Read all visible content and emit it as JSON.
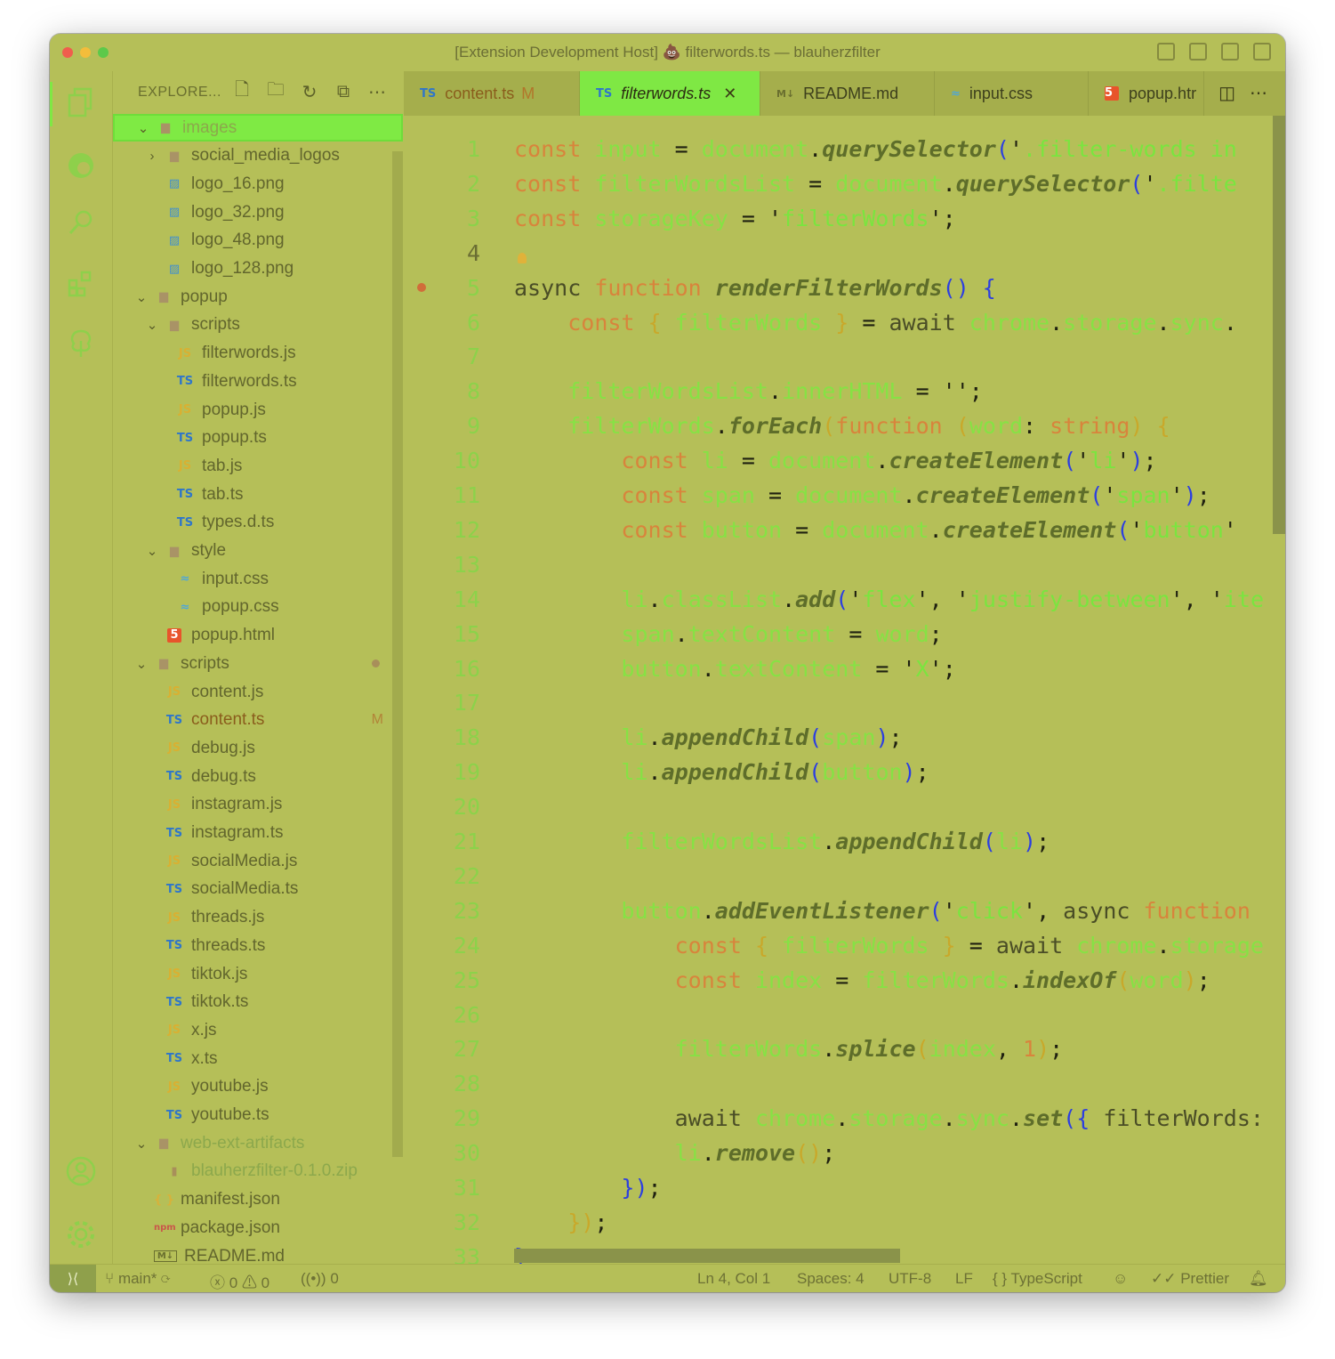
{
  "window": {
    "title": "[Extension Development Host] 💩 filterwords.ts — blauherzfilter"
  },
  "activity_bar": {
    "items": [
      "explorer-icon",
      "edge-icon",
      "search-icon",
      "extensions-icon",
      "tree-icon",
      "account-icon",
      "settings-gear-icon"
    ]
  },
  "explorer": {
    "title": "EXPLORE...",
    "actions": [
      "new-file-icon",
      "new-folder-icon",
      "refresh-icon",
      "collapse-all-icon",
      "more-icon"
    ],
    "items": [
      {
        "label": "images",
        "type": "folder",
        "expanded": true,
        "selected": true
      },
      {
        "label": "social_media_logos",
        "type": "folder",
        "expanded": false
      },
      {
        "label": "logo_16.png",
        "type": "image"
      },
      {
        "label": "logo_32.png",
        "type": "image"
      },
      {
        "label": "logo_48.png",
        "type": "image"
      },
      {
        "label": "logo_128.png",
        "type": "image"
      },
      {
        "label": "popup",
        "type": "folder",
        "expanded": true
      },
      {
        "label": "scripts",
        "type": "folder",
        "expanded": true
      },
      {
        "label": "filterwords.js",
        "type": "js"
      },
      {
        "label": "filterwords.ts",
        "type": "ts"
      },
      {
        "label": "popup.js",
        "type": "js"
      },
      {
        "label": "popup.ts",
        "type": "ts"
      },
      {
        "label": "tab.js",
        "type": "js"
      },
      {
        "label": "tab.ts",
        "type": "ts"
      },
      {
        "label": "types.d.ts",
        "type": "ts"
      },
      {
        "label": "style",
        "type": "folder",
        "expanded": true
      },
      {
        "label": "input.css",
        "type": "css"
      },
      {
        "label": "popup.css",
        "type": "css"
      },
      {
        "label": "popup.html",
        "type": "html"
      },
      {
        "label": "scripts",
        "type": "folder",
        "expanded": true,
        "dot": true
      },
      {
        "label": "content.js",
        "type": "js"
      },
      {
        "label": "content.ts",
        "type": "ts",
        "badge": "M"
      },
      {
        "label": "debug.js",
        "type": "js"
      },
      {
        "label": "debug.ts",
        "type": "ts"
      },
      {
        "label": "instagram.js",
        "type": "js"
      },
      {
        "label": "instagram.ts",
        "type": "ts"
      },
      {
        "label": "socialMedia.js",
        "type": "js"
      },
      {
        "label": "socialMedia.ts",
        "type": "ts"
      },
      {
        "label": "threads.js",
        "type": "js"
      },
      {
        "label": "threads.ts",
        "type": "ts"
      },
      {
        "label": "tiktok.js",
        "type": "js"
      },
      {
        "label": "tiktok.ts",
        "type": "ts"
      },
      {
        "label": "x.js",
        "type": "js"
      },
      {
        "label": "x.ts",
        "type": "ts"
      },
      {
        "label": "youtube.js",
        "type": "js"
      },
      {
        "label": "youtube.ts",
        "type": "ts"
      },
      {
        "label": "web-ext-artifacts",
        "type": "folder",
        "expanded": true
      },
      {
        "label": "blauherzfilter-0.1.0.zip",
        "type": "zip"
      },
      {
        "label": "manifest.json",
        "type": "json"
      },
      {
        "label": "package.json",
        "type": "npm"
      },
      {
        "label": "README.md",
        "type": "md"
      }
    ]
  },
  "tabs": [
    {
      "label": "content.ts",
      "icon": "TS",
      "modified": "M"
    },
    {
      "label": "filterwords.ts",
      "icon": "TS",
      "active": true
    },
    {
      "label": "README.md",
      "icon": "M↓"
    },
    {
      "label": "input.css",
      "icon": "≈"
    },
    {
      "label": "popup.htr",
      "icon": "5"
    }
  ],
  "editor": {
    "current_line": 4,
    "breakpoint_line": 5,
    "line_numbers": [
      "1",
      "2",
      "3",
      "4",
      "5",
      "6",
      "7",
      "8",
      "9",
      "10",
      "11",
      "12",
      "13",
      "14",
      "15",
      "16",
      "17",
      "18",
      "19",
      "20",
      "21",
      "22",
      "23",
      "24",
      "25",
      "26",
      "27",
      "28",
      "29",
      "30",
      "31",
      "32",
      "33"
    ],
    "lines": [
      [
        [
          "k",
          "const "
        ],
        [
          "v",
          "input"
        ],
        [
          "o",
          " = "
        ],
        [
          "v",
          "document"
        ],
        [
          "o",
          "."
        ],
        [
          "f",
          "querySelector"
        ],
        [
          "p",
          "("
        ],
        [
          "o",
          "'"
        ],
        [
          "s",
          ".filter-words in"
        ]
      ],
      [
        [
          "k",
          "const "
        ],
        [
          "v",
          "filterWordsList"
        ],
        [
          "o",
          " = "
        ],
        [
          "v",
          "document"
        ],
        [
          "o",
          "."
        ],
        [
          "f",
          "querySelector"
        ],
        [
          "p",
          "("
        ],
        [
          "o",
          "'"
        ],
        [
          "s",
          ".filte"
        ]
      ],
      [
        [
          "k",
          "const "
        ],
        [
          "v",
          "storageKey"
        ],
        [
          "o",
          " = "
        ],
        [
          "o",
          "'"
        ],
        [
          "s",
          "filterWords"
        ],
        [
          "o",
          "';"
        ]
      ],
      [],
      [
        [
          "kw2",
          "async "
        ],
        [
          "k",
          "function "
        ],
        [
          "f",
          "renderFilterWords"
        ],
        [
          "p",
          "() {"
        ]
      ],
      [
        [
          "o",
          "    "
        ],
        [
          "k",
          "const "
        ],
        [
          "y",
          "{ "
        ],
        [
          "v",
          "filterWords"
        ],
        [
          "y",
          " }"
        ],
        [
          "o",
          " = "
        ],
        [
          "kw2",
          "await "
        ],
        [
          "v",
          "chrome"
        ],
        [
          "o",
          "."
        ],
        [
          "v",
          "storage"
        ],
        [
          "o",
          "."
        ],
        [
          "v",
          "sync"
        ],
        [
          "o",
          "."
        ]
      ],
      [],
      [
        [
          "o",
          "    "
        ],
        [
          "v",
          "filterWordsList"
        ],
        [
          "o",
          "."
        ],
        [
          "v",
          "innerHTML"
        ],
        [
          "o",
          " = '';"
        ]
      ],
      [
        [
          "o",
          "    "
        ],
        [
          "v",
          "filterWords"
        ],
        [
          "o",
          "."
        ],
        [
          "f",
          "forEach"
        ],
        [
          "y",
          "("
        ],
        [
          "k",
          "function "
        ],
        [
          "y",
          "("
        ],
        [
          "v",
          "word"
        ],
        [
          "o",
          ": "
        ],
        [
          "n",
          "string"
        ],
        [
          "y",
          ")"
        ],
        [
          "o",
          " "
        ],
        [
          "y",
          "{"
        ]
      ],
      [
        [
          "o",
          "        "
        ],
        [
          "k",
          "const "
        ],
        [
          "v",
          "li"
        ],
        [
          "o",
          " = "
        ],
        [
          "v",
          "document"
        ],
        [
          "o",
          "."
        ],
        [
          "f",
          "createElement"
        ],
        [
          "p",
          "("
        ],
        [
          "o",
          "'"
        ],
        [
          "s",
          "li"
        ],
        [
          "o",
          "'"
        ],
        [
          "p",
          ")"
        ],
        [
          "o",
          ";"
        ]
      ],
      [
        [
          "o",
          "        "
        ],
        [
          "k",
          "const "
        ],
        [
          "v",
          "span"
        ],
        [
          "o",
          " = "
        ],
        [
          "v",
          "document"
        ],
        [
          "o",
          "."
        ],
        [
          "f",
          "createElement"
        ],
        [
          "p",
          "("
        ],
        [
          "o",
          "'"
        ],
        [
          "s",
          "span"
        ],
        [
          "o",
          "'"
        ],
        [
          "p",
          ")"
        ],
        [
          "o",
          ";"
        ]
      ],
      [
        [
          "o",
          "        "
        ],
        [
          "k",
          "const "
        ],
        [
          "v",
          "button"
        ],
        [
          "o",
          " = "
        ],
        [
          "v",
          "document"
        ],
        [
          "o",
          "."
        ],
        [
          "f",
          "createElement"
        ],
        [
          "p",
          "("
        ],
        [
          "o",
          "'"
        ],
        [
          "s",
          "button"
        ],
        [
          "o",
          "'"
        ]
      ],
      [],
      [
        [
          "o",
          "        "
        ],
        [
          "v",
          "li"
        ],
        [
          "o",
          "."
        ],
        [
          "v",
          "classList"
        ],
        [
          "o",
          "."
        ],
        [
          "f",
          "add"
        ],
        [
          "p",
          "("
        ],
        [
          "o",
          "'"
        ],
        [
          "s",
          "flex"
        ],
        [
          "o",
          "', '"
        ],
        [
          "s",
          "justify-between"
        ],
        [
          "o",
          "', '"
        ],
        [
          "s",
          "ite"
        ]
      ],
      [
        [
          "o",
          "        "
        ],
        [
          "v",
          "span"
        ],
        [
          "o",
          "."
        ],
        [
          "v",
          "textContent"
        ],
        [
          "o",
          " = "
        ],
        [
          "v",
          "word"
        ],
        [
          "o",
          ";"
        ]
      ],
      [
        [
          "o",
          "        "
        ],
        [
          "v",
          "button"
        ],
        [
          "o",
          "."
        ],
        [
          "v",
          "textContent"
        ],
        [
          "o",
          " = '"
        ],
        [
          "s",
          "X"
        ],
        [
          "o",
          "';"
        ]
      ],
      [],
      [
        [
          "o",
          "        "
        ],
        [
          "v",
          "li"
        ],
        [
          "o",
          "."
        ],
        [
          "f",
          "appendChild"
        ],
        [
          "p",
          "("
        ],
        [
          "v",
          "span"
        ],
        [
          "p",
          ")"
        ],
        [
          "o",
          ";"
        ]
      ],
      [
        [
          "o",
          "        "
        ],
        [
          "v",
          "li"
        ],
        [
          "o",
          "."
        ],
        [
          "f",
          "appendChild"
        ],
        [
          "p",
          "("
        ],
        [
          "v",
          "button"
        ],
        [
          "p",
          ")"
        ],
        [
          "o",
          ";"
        ]
      ],
      [],
      [
        [
          "o",
          "        "
        ],
        [
          "v",
          "filterWordsList"
        ],
        [
          "o",
          "."
        ],
        [
          "f",
          "appendChild"
        ],
        [
          "p",
          "("
        ],
        [
          "v",
          "li"
        ],
        [
          "p",
          ")"
        ],
        [
          "o",
          ";"
        ]
      ],
      [],
      [
        [
          "o",
          "        "
        ],
        [
          "v",
          "button"
        ],
        [
          "o",
          "."
        ],
        [
          "f",
          "addEventListener"
        ],
        [
          "p",
          "("
        ],
        [
          "o",
          "'"
        ],
        [
          "s",
          "click"
        ],
        [
          "o",
          "', "
        ],
        [
          "kw2",
          "async "
        ],
        [
          "k",
          "function"
        ]
      ],
      [
        [
          "o",
          "            "
        ],
        [
          "k",
          "const "
        ],
        [
          "y",
          "{ "
        ],
        [
          "v",
          "filterWords"
        ],
        [
          "y",
          " }"
        ],
        [
          "o",
          " = "
        ],
        [
          "kw2",
          "await "
        ],
        [
          "v",
          "chrome"
        ],
        [
          "o",
          "."
        ],
        [
          "v",
          "storage"
        ]
      ],
      [
        [
          "o",
          "            "
        ],
        [
          "k",
          "const "
        ],
        [
          "v",
          "index"
        ],
        [
          "o",
          " = "
        ],
        [
          "v",
          "filterWords"
        ],
        [
          "o",
          "."
        ],
        [
          "f",
          "indexOf"
        ],
        [
          "y",
          "("
        ],
        [
          "v",
          "word"
        ],
        [
          "y",
          ")"
        ],
        [
          "o",
          ";"
        ]
      ],
      [],
      [
        [
          "o",
          "            "
        ],
        [
          "v",
          "filterWords"
        ],
        [
          "o",
          "."
        ],
        [
          "f",
          "splice"
        ],
        [
          "y",
          "("
        ],
        [
          "v",
          "index"
        ],
        [
          "o",
          ", "
        ],
        [
          "n",
          "1"
        ],
        [
          "y",
          ")"
        ],
        [
          "o",
          ";"
        ]
      ],
      [],
      [
        [
          "o",
          "            "
        ],
        [
          "kw2",
          "await "
        ],
        [
          "v",
          "chrome"
        ],
        [
          "o",
          "."
        ],
        [
          "v",
          "storage"
        ],
        [
          "o",
          "."
        ],
        [
          "v",
          "sync"
        ],
        [
          "o",
          "."
        ],
        [
          "f",
          "set"
        ],
        [
          "p",
          "({ "
        ],
        [
          "kw2",
          "filterWords:"
        ]
      ],
      [
        [
          "o",
          "            "
        ],
        [
          "v",
          "li"
        ],
        [
          "o",
          "."
        ],
        [
          "f",
          "remove"
        ],
        [
          "y",
          "()"
        ],
        [
          "o",
          ";"
        ]
      ],
      [
        [
          "o",
          "        "
        ],
        [
          "p",
          "})"
        ],
        [
          "o",
          ";"
        ]
      ],
      [
        [
          "o",
          "    "
        ],
        [
          "y",
          "})"
        ],
        [
          "o",
          ";"
        ]
      ],
      [
        [
          "p",
          "}"
        ]
      ]
    ]
  },
  "statusbar": {
    "branch": "main*",
    "errors": "0",
    "warnings": "0",
    "ports": "0",
    "position": "Ln 4, Col 1",
    "spaces": "Spaces: 4",
    "encoding": "UTF-8",
    "eol": "LF",
    "language": "TypeScript",
    "formatter": "Prettier"
  }
}
